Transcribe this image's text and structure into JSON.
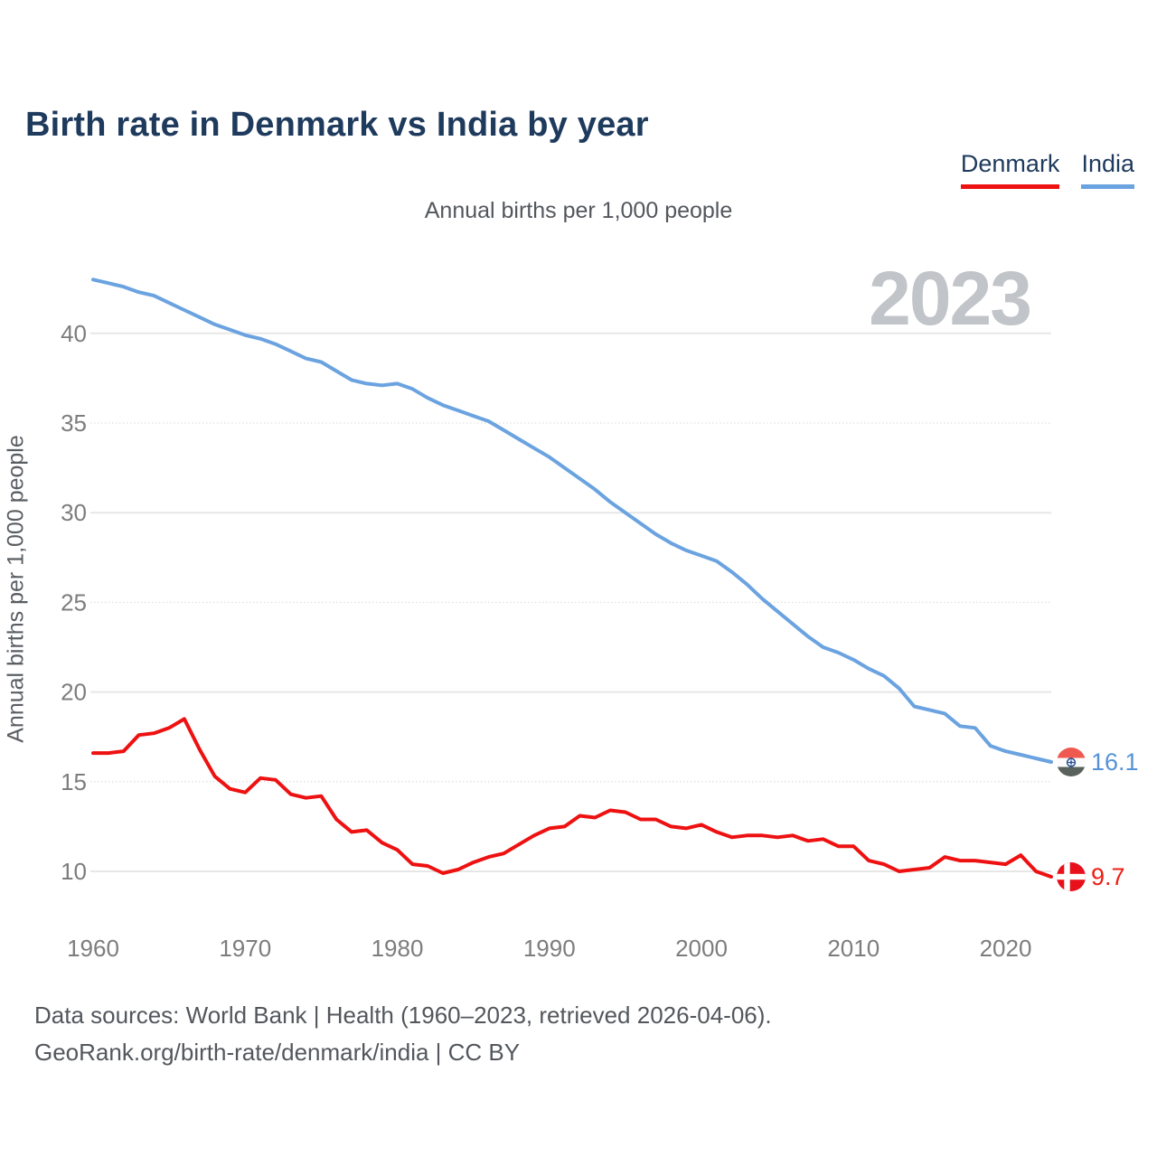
{
  "page": {
    "title": "Birth rate in Denmark vs India by year",
    "subtitle": "Annual births per 1,000 people",
    "watermark_year": "2023",
    "footer_line1": "Data sources: World Bank | Health (1960–2023, retrieved 2026-04-06).",
    "footer_line2": "GeoRank.org/birth-rate/denmark/india | CC BY"
  },
  "legend": {
    "items": [
      {
        "label": "Denmark",
        "color": "#ee1111"
      },
      {
        "label": "India",
        "color": "#6ba3e0"
      }
    ]
  },
  "chart_data": {
    "type": "line",
    "title": "Birth rate in Denmark vs India by year",
    "subtitle": "Annual births per 1,000 people",
    "xlabel": "",
    "ylabel": "Annual births per 1,000 people",
    "grid": true,
    "legend_position": "top-right",
    "xlim": [
      1960,
      2023
    ],
    "ylim": [
      8.5,
      44
    ],
    "xticks": [
      1960,
      1970,
      1980,
      1990,
      2000,
      2010,
      2020
    ],
    "yticks": [
      10,
      15,
      20,
      25,
      30,
      35,
      40
    ],
    "x": [
      1960,
      1961,
      1962,
      1963,
      1964,
      1965,
      1966,
      1967,
      1968,
      1969,
      1970,
      1971,
      1972,
      1973,
      1974,
      1975,
      1976,
      1977,
      1978,
      1979,
      1980,
      1981,
      1982,
      1983,
      1984,
      1985,
      1986,
      1987,
      1988,
      1989,
      1990,
      1991,
      1992,
      1993,
      1994,
      1995,
      1996,
      1997,
      1998,
      1999,
      2000,
      2001,
      2002,
      2003,
      2004,
      2005,
      2006,
      2007,
      2008,
      2009,
      2010,
      2011,
      2012,
      2013,
      2014,
      2015,
      2016,
      2017,
      2018,
      2019,
      2020,
      2021,
      2022,
      2023
    ],
    "series": [
      {
        "name": "Denmark",
        "color": "#ee1111",
        "end_label": "9.7",
        "values": [
          16.6,
          16.6,
          16.7,
          17.6,
          17.7,
          18.0,
          18.5,
          16.8,
          15.3,
          14.6,
          14.4,
          15.2,
          15.1,
          14.3,
          14.1,
          14.2,
          12.9,
          12.2,
          12.3,
          11.6,
          11.2,
          10.4,
          10.3,
          9.9,
          10.1,
          10.5,
          10.8,
          11.0,
          11.5,
          12.0,
          12.4,
          12.5,
          13.1,
          13.0,
          13.4,
          13.3,
          12.9,
          12.9,
          12.5,
          12.4,
          12.6,
          12.2,
          11.9,
          12.0,
          12.0,
          11.9,
          12.0,
          11.7,
          11.8,
          11.4,
          11.4,
          10.6,
          10.4,
          10.0,
          10.1,
          10.2,
          10.8,
          10.6,
          10.6,
          10.5,
          10.4,
          10.9,
          10.0,
          9.7
        ]
      },
      {
        "name": "India",
        "color": "#6ba3e0",
        "end_label": "16.1",
        "values": [
          43.0,
          42.8,
          42.6,
          42.3,
          42.1,
          41.7,
          41.3,
          40.9,
          40.5,
          40.2,
          39.9,
          39.7,
          39.4,
          39.0,
          38.6,
          38.4,
          37.9,
          37.4,
          37.2,
          37.1,
          37.2,
          36.9,
          36.4,
          36.0,
          35.7,
          35.4,
          35.1,
          34.6,
          34.1,
          33.6,
          33.1,
          32.5,
          31.9,
          31.3,
          30.6,
          30.0,
          29.4,
          28.8,
          28.3,
          27.9,
          27.6,
          27.3,
          26.7,
          26.0,
          25.2,
          24.5,
          23.8,
          23.1,
          22.5,
          22.2,
          21.8,
          21.3,
          20.9,
          20.2,
          19.2,
          19.0,
          18.8,
          18.1,
          18.0,
          17.0,
          16.7,
          16.5,
          16.3,
          16.1
        ]
      }
    ]
  },
  "end_markers": {
    "denmark_value": "9.7",
    "denmark_color": "#ef1d14",
    "india_value": "16.1",
    "india_color": "#5593d8"
  }
}
